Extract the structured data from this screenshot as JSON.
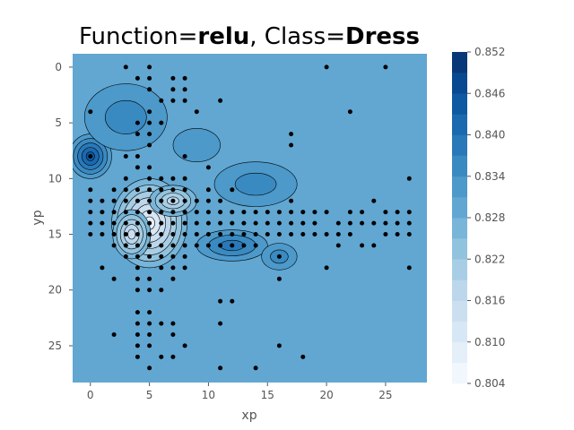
{
  "chart_data": {
    "type": "heatmap",
    "subtype": "filled-contour with scatter overlay",
    "title": {
      "prefix": "Function=",
      "function": "relu",
      "separator": ", Class=",
      "class": "Dress"
    },
    "xlabel": "xp",
    "ylabel": "yp",
    "xlim": [
      -1.5,
      28.5
    ],
    "ylim": [
      28.3,
      -1.2
    ],
    "y_inverted": true,
    "grid": false,
    "x_ticks": [
      0,
      5,
      10,
      15,
      20,
      25
    ],
    "y_ticks": [
      0,
      5,
      10,
      15,
      20,
      25
    ],
    "colormap": "Blues",
    "colorbar": {
      "min": 0.804,
      "max": 0.852,
      "ticks": [
        "0.852",
        "0.846",
        "0.840",
        "0.834",
        "0.828",
        "0.822",
        "0.816",
        "0.810",
        "0.804"
      ],
      "levels": 16
    },
    "background_level": 0.831,
    "contour_regions": [
      {
        "kind": "low",
        "center": [
          5,
          14
        ],
        "radius": [
          3.2,
          4.0
        ],
        "min_value": 0.808
      },
      {
        "kind": "low",
        "center": [
          3.5,
          15
        ],
        "radius": [
          1.6,
          2.2
        ],
        "min_value": 0.814
      },
      {
        "kind": "low",
        "center": [
          7,
          12
        ],
        "radius": [
          2.0,
          1.4
        ],
        "min_value": 0.818
      },
      {
        "kind": "high",
        "center": [
          0,
          8
        ],
        "radius": [
          1.8,
          2.0
        ],
        "max_value": 0.846
      },
      {
        "kind": "high",
        "center": [
          12,
          16
        ],
        "radius": [
          3.0,
          1.4
        ],
        "max_value": 0.84
      },
      {
        "kind": "high",
        "center": [
          14,
          10.5
        ],
        "radius": [
          3.5,
          2.0
        ],
        "max_value": 0.836
      },
      {
        "kind": "high",
        "center": [
          16,
          17
        ],
        "radius": [
          1.5,
          1.2
        ],
        "max_value": 0.837
      },
      {
        "kind": "high",
        "center": [
          3,
          4.5
        ],
        "radius": [
          3.5,
          3.0
        ],
        "max_value": 0.836
      },
      {
        "kind": "high",
        "center": [
          9,
          7
        ],
        "radius": [
          2.0,
          1.5
        ],
        "max_value": 0.834
      }
    ],
    "points": [
      [
        3,
        0
      ],
      [
        5,
        0
      ],
      [
        20,
        0
      ],
      [
        25,
        0
      ],
      [
        4,
        1
      ],
      [
        5,
        1
      ],
      [
        7,
        1
      ],
      [
        8,
        1
      ],
      [
        5,
        2
      ],
      [
        7,
        2
      ],
      [
        8,
        2
      ],
      [
        6,
        3
      ],
      [
        7,
        3
      ],
      [
        8,
        3
      ],
      [
        11,
        3
      ],
      [
        0,
        4
      ],
      [
        5,
        4
      ],
      [
        9,
        4
      ],
      [
        22,
        4
      ],
      [
        4,
        5
      ],
      [
        5,
        5
      ],
      [
        6,
        5
      ],
      [
        4,
        6
      ],
      [
        5,
        6
      ],
      [
        17,
        6
      ],
      [
        5,
        7
      ],
      [
        17,
        7
      ],
      [
        0,
        8
      ],
      [
        3,
        8
      ],
      [
        4,
        8
      ],
      [
        8,
        8
      ],
      [
        4,
        9
      ],
      [
        5,
        9
      ],
      [
        10,
        9
      ],
      [
        3,
        10
      ],
      [
        5,
        10
      ],
      [
        6,
        10
      ],
      [
        7,
        10
      ],
      [
        8,
        10
      ],
      [
        27,
        10
      ],
      [
        0,
        11
      ],
      [
        2,
        11
      ],
      [
        3,
        11
      ],
      [
        4,
        11
      ],
      [
        5,
        11
      ],
      [
        6,
        11
      ],
      [
        7,
        11
      ],
      [
        8,
        11
      ],
      [
        10,
        11
      ],
      [
        12,
        11
      ],
      [
        0,
        12
      ],
      [
        1,
        12
      ],
      [
        2,
        12
      ],
      [
        3,
        12
      ],
      [
        4,
        12
      ],
      [
        5,
        12
      ],
      [
        6,
        12
      ],
      [
        7,
        12
      ],
      [
        8,
        12
      ],
      [
        9,
        12
      ],
      [
        10,
        12
      ],
      [
        11,
        12
      ],
      [
        17,
        12
      ],
      [
        24,
        12
      ],
      [
        0,
        13
      ],
      [
        1,
        13
      ],
      [
        2,
        13
      ],
      [
        3,
        13
      ],
      [
        4,
        13
      ],
      [
        5,
        13
      ],
      [
        6,
        13
      ],
      [
        7,
        13
      ],
      [
        8,
        13
      ],
      [
        9,
        13
      ],
      [
        10,
        13
      ],
      [
        11,
        13
      ],
      [
        12,
        13
      ],
      [
        13,
        13
      ],
      [
        14,
        13
      ],
      [
        15,
        13
      ],
      [
        16,
        13
      ],
      [
        17,
        13
      ],
      [
        18,
        13
      ],
      [
        19,
        13
      ],
      [
        20,
        13
      ],
      [
        22,
        13
      ],
      [
        23,
        13
      ],
      [
        25,
        13
      ],
      [
        26,
        13
      ],
      [
        27,
        13
      ],
      [
        0,
        14
      ],
      [
        1,
        14
      ],
      [
        2,
        14
      ],
      [
        3,
        14
      ],
      [
        4,
        14
      ],
      [
        5,
        14
      ],
      [
        6,
        14
      ],
      [
        7,
        14
      ],
      [
        8,
        14
      ],
      [
        9,
        14
      ],
      [
        10,
        14
      ],
      [
        11,
        14
      ],
      [
        12,
        14
      ],
      [
        13,
        14
      ],
      [
        14,
        14
      ],
      [
        15,
        14
      ],
      [
        16,
        14
      ],
      [
        17,
        14
      ],
      [
        18,
        14
      ],
      [
        19,
        14
      ],
      [
        21,
        14
      ],
      [
        22,
        14
      ],
      [
        23,
        14
      ],
      [
        24,
        14
      ],
      [
        25,
        14
      ],
      [
        26,
        14
      ],
      [
        27,
        14
      ],
      [
        0,
        15
      ],
      [
        1,
        15
      ],
      [
        2,
        15
      ],
      [
        3,
        15
      ],
      [
        4,
        15
      ],
      [
        5,
        15
      ],
      [
        6,
        15
      ],
      [
        7,
        15
      ],
      [
        8,
        15
      ],
      [
        9,
        15
      ],
      [
        10,
        15
      ],
      [
        11,
        15
      ],
      [
        12,
        15
      ],
      [
        13,
        15
      ],
      [
        14,
        15
      ],
      [
        15,
        15
      ],
      [
        16,
        15
      ],
      [
        17,
        15
      ],
      [
        18,
        15
      ],
      [
        19,
        15
      ],
      [
        20,
        15
      ],
      [
        21,
        15
      ],
      [
        22,
        15
      ],
      [
        25,
        15
      ],
      [
        26,
        15
      ],
      [
        27,
        15
      ],
      [
        2,
        16
      ],
      [
        3,
        16
      ],
      [
        4,
        16
      ],
      [
        5,
        16
      ],
      [
        6,
        16
      ],
      [
        7,
        16
      ],
      [
        8,
        16
      ],
      [
        9,
        16
      ],
      [
        10,
        16
      ],
      [
        11,
        16
      ],
      [
        12,
        16
      ],
      [
        13,
        16
      ],
      [
        14,
        16
      ],
      [
        21,
        16
      ],
      [
        23,
        16
      ],
      [
        24,
        16
      ],
      [
        3,
        17
      ],
      [
        4,
        17
      ],
      [
        5,
        17
      ],
      [
        6,
        17
      ],
      [
        7,
        17
      ],
      [
        8,
        17
      ],
      [
        16,
        17
      ],
      [
        1,
        18
      ],
      [
        4,
        18
      ],
      [
        6,
        18
      ],
      [
        7,
        18
      ],
      [
        8,
        18
      ],
      [
        20,
        18
      ],
      [
        27,
        18
      ],
      [
        2,
        19
      ],
      [
        4,
        19
      ],
      [
        5,
        19
      ],
      [
        7,
        19
      ],
      [
        16,
        19
      ],
      [
        4,
        20
      ],
      [
        5,
        20
      ],
      [
        6,
        20
      ],
      [
        11,
        21
      ],
      [
        12,
        21
      ],
      [
        4,
        22
      ],
      [
        5,
        22
      ],
      [
        4,
        23
      ],
      [
        5,
        23
      ],
      [
        6,
        23
      ],
      [
        7,
        23
      ],
      [
        11,
        23
      ],
      [
        2,
        24
      ],
      [
        4,
        24
      ],
      [
        5,
        24
      ],
      [
        7,
        24
      ],
      [
        4,
        25
      ],
      [
        5,
        25
      ],
      [
        8,
        25
      ],
      [
        16,
        25
      ],
      [
        4,
        26
      ],
      [
        6,
        26
      ],
      [
        7,
        26
      ],
      [
        18,
        26
      ],
      [
        5,
        27
      ],
      [
        11,
        27
      ],
      [
        14,
        27
      ]
    ]
  }
}
